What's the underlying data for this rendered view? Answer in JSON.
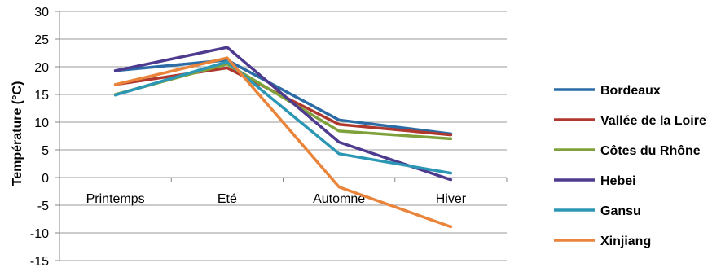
{
  "chart_data": {
    "type": "line",
    "categories": [
      "Printemps",
      "Eté",
      "Automne",
      "Hiver"
    ],
    "ylabel": "Température (°C)",
    "ylim": [
      -15,
      30
    ],
    "yticks": [
      30,
      25,
      20,
      15,
      10,
      5,
      0,
      -5,
      -10,
      -15
    ],
    "grid": true,
    "legend_position": "right",
    "series": [
      {
        "name": "Bordeaux",
        "color": "#2c6ca6",
        "values": [
          19.3,
          21.2,
          10.4,
          7.9
        ]
      },
      {
        "name": "Vallée de la Loire",
        "color": "#b0372d",
        "values": [
          16.8,
          19.8,
          9.6,
          7.7
        ]
      },
      {
        "name": "Côtes du Rhône",
        "color": "#7fa13c",
        "values": [
          15.0,
          20.5,
          8.4,
          7.0
        ]
      },
      {
        "name": "Hebei",
        "color": "#4e3a8e",
        "values": [
          19.3,
          23.5,
          6.4,
          -0.4
        ]
      },
      {
        "name": "Gansu",
        "color": "#2b97b4",
        "values": [
          14.9,
          20.9,
          4.3,
          0.8
        ]
      },
      {
        "name": "Xinjiang",
        "color": "#e9843a",
        "values": [
          16.8,
          21.6,
          -1.7,
          -8.9
        ]
      }
    ]
  }
}
